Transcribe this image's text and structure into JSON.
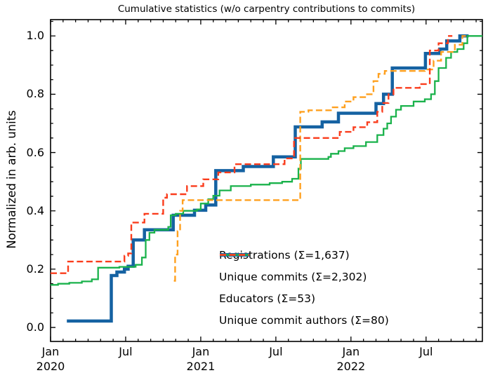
{
  "chart_data": {
    "type": "line",
    "subtype": "cumulative-step",
    "title": "Cumulative statistics (w/o carpentry contributions to commits)",
    "ylabel": "Normalized in arb. units",
    "xlabel": "",
    "x_unit": "months since Jan 2020",
    "xlim": [
      0,
      34.5
    ],
    "ylim": [
      -0.048,
      1.056
    ],
    "grid": false,
    "legend_position": "lower right",
    "axis_color": "#000000",
    "x_ticks_major": [
      {
        "m": 0,
        "label": "Jan",
        "year": "2020"
      },
      {
        "m": 6,
        "label": "Jul",
        "year": ""
      },
      {
        "m": 12,
        "label": "Jan",
        "year": "2021"
      },
      {
        "m": 18,
        "label": "Jul",
        "year": ""
      },
      {
        "m": 24,
        "label": "Jan",
        "year": "2022"
      },
      {
        "m": 30,
        "label": "Jul",
        "year": ""
      }
    ],
    "x_minor_step_months": 1,
    "y_ticks_major": [
      {
        "v": 0.0,
        "label": "0.0"
      },
      {
        "v": 0.2,
        "label": "0.2"
      },
      {
        "v": 0.4,
        "label": "0.4"
      },
      {
        "v": 0.6,
        "label": "0.6"
      },
      {
        "v": 0.8,
        "label": "0.8"
      },
      {
        "v": 1.0,
        "label": "1.0"
      }
    ],
    "y_minor_step": 0.05,
    "series": [
      {
        "name": "Registrations",
        "legend_label": "Registrations  (Σ=1,637)",
        "total": 1637,
        "color": "#1562a2",
        "style": "solid",
        "width": 4.5,
        "points": [
          [
            1.3,
            0.022
          ],
          [
            4.85,
            0.178
          ],
          [
            5.3,
            0.19
          ],
          [
            5.9,
            0.2
          ],
          [
            6.2,
            0.21
          ],
          [
            6.6,
            0.3
          ],
          [
            7.5,
            0.335
          ],
          [
            9.8,
            0.385
          ],
          [
            11.5,
            0.402
          ],
          [
            12.4,
            0.42
          ],
          [
            13.2,
            0.538
          ],
          [
            15.4,
            0.552
          ],
          [
            17.8,
            0.585
          ],
          [
            19.55,
            0.688
          ],
          [
            21.7,
            0.705
          ],
          [
            23.0,
            0.735
          ],
          [
            26.0,
            0.768
          ],
          [
            26.6,
            0.8
          ],
          [
            27.3,
            0.89
          ],
          [
            29.95,
            0.94
          ],
          [
            31.1,
            0.955
          ],
          [
            31.65,
            0.983
          ],
          [
            32.7,
            1.0
          ],
          [
            33.4,
            1.0
          ]
        ]
      },
      {
        "name": "Unique commits",
        "legend_label": "Unique commits (Σ=2,302)",
        "total": 2302,
        "color": "#1ab24b",
        "style": "solid",
        "width": 2.3,
        "points": [
          [
            0,
            0.146
          ],
          [
            0.6,
            0.15
          ],
          [
            1.5,
            0.153
          ],
          [
            2.5,
            0.158
          ],
          [
            3.3,
            0.165
          ],
          [
            3.8,
            0.205
          ],
          [
            5.5,
            0.208
          ],
          [
            6.8,
            0.215
          ],
          [
            7.3,
            0.24
          ],
          [
            7.6,
            0.3
          ],
          [
            7.9,
            0.325
          ],
          [
            8.3,
            0.335
          ],
          [
            9.4,
            0.345
          ],
          [
            9.6,
            0.385
          ],
          [
            10.0,
            0.39
          ],
          [
            10.6,
            0.4
          ],
          [
            11.7,
            0.405
          ],
          [
            12.0,
            0.425
          ],
          [
            12.6,
            0.44
          ],
          [
            13.0,
            0.452
          ],
          [
            13.5,
            0.47
          ],
          [
            14.4,
            0.485
          ],
          [
            16.0,
            0.49
          ],
          [
            17.5,
            0.495
          ],
          [
            18.5,
            0.5
          ],
          [
            19.3,
            0.51
          ],
          [
            19.8,
            0.545
          ],
          [
            20.0,
            0.578
          ],
          [
            22.2,
            0.585
          ],
          [
            22.4,
            0.596
          ],
          [
            23.0,
            0.605
          ],
          [
            23.5,
            0.615
          ],
          [
            24.2,
            0.622
          ],
          [
            25.2,
            0.636
          ],
          [
            26.1,
            0.66
          ],
          [
            26.6,
            0.682
          ],
          [
            26.9,
            0.7
          ],
          [
            27.2,
            0.723
          ],
          [
            27.6,
            0.747
          ],
          [
            28.0,
            0.76
          ],
          [
            29.0,
            0.775
          ],
          [
            29.9,
            0.783
          ],
          [
            30.4,
            0.8
          ],
          [
            30.7,
            0.845
          ],
          [
            31.0,
            0.89
          ],
          [
            31.6,
            0.925
          ],
          [
            32.0,
            0.945
          ],
          [
            32.5,
            0.955
          ],
          [
            33.0,
            0.975
          ],
          [
            33.3,
            1.0
          ],
          [
            34.5,
            1.0
          ]
        ]
      },
      {
        "name": "Educators",
        "legend_label": "Educators (Σ=53)",
        "total": 53,
        "color": "#ffa01e",
        "style": "dashed",
        "width": 2.4,
        "points": [
          [
            9.85,
            0.16
          ],
          [
            9.95,
            0.25
          ],
          [
            10.15,
            0.33
          ],
          [
            10.35,
            0.4
          ],
          [
            10.55,
            0.437
          ],
          [
            19.85,
            0.44
          ],
          [
            19.95,
            0.74
          ],
          [
            20.6,
            0.745
          ],
          [
            22.4,
            0.755
          ],
          [
            23.5,
            0.775
          ],
          [
            24.2,
            0.79
          ],
          [
            25.2,
            0.8
          ],
          [
            25.8,
            0.845
          ],
          [
            26.2,
            0.87
          ],
          [
            26.7,
            0.88
          ],
          [
            29.9,
            0.885
          ],
          [
            30.6,
            0.915
          ],
          [
            31.2,
            0.945
          ],
          [
            32.3,
            0.97
          ],
          [
            32.9,
            1.0
          ],
          [
            33.25,
            1.0
          ]
        ]
      },
      {
        "name": "Unique commit authors",
        "legend_label": "Unique commit authors (Σ=80)",
        "total": 80,
        "color": "#fa3c1c",
        "style": "dashed",
        "width": 2.4,
        "points": [
          [
            0,
            0.186
          ],
          [
            1.4,
            0.226
          ],
          [
            5.9,
            0.246
          ],
          [
            6.2,
            0.254
          ],
          [
            6.45,
            0.36
          ],
          [
            7.5,
            0.39
          ],
          [
            9.0,
            0.445
          ],
          [
            9.3,
            0.457
          ],
          [
            10.9,
            0.485
          ],
          [
            12.2,
            0.508
          ],
          [
            13.4,
            0.532
          ],
          [
            14.7,
            0.56
          ],
          [
            18.7,
            0.58
          ],
          [
            19.45,
            0.65
          ],
          [
            23.1,
            0.671
          ],
          [
            24.2,
            0.687
          ],
          [
            25.3,
            0.704
          ],
          [
            26.1,
            0.74
          ],
          [
            26.5,
            0.77
          ],
          [
            27.0,
            0.8
          ],
          [
            27.4,
            0.822
          ],
          [
            29.5,
            0.835
          ],
          [
            30.3,
            0.95
          ],
          [
            31.0,
            0.975
          ],
          [
            31.75,
            1.0
          ],
          [
            32.1,
            1.0
          ]
        ]
      }
    ]
  }
}
